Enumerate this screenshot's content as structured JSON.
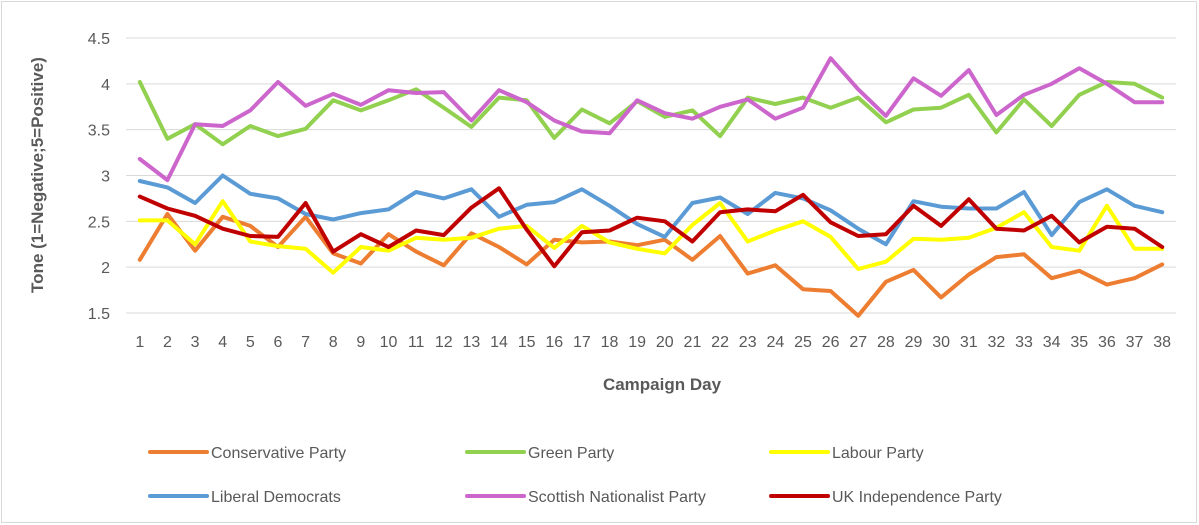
{
  "chart_data": {
    "type": "line",
    "title": "",
    "xlabel": "Campaign Day",
    "ylabel": "Tone (1=Negative;5=Positive)",
    "ylim": [
      1.5,
      4.5
    ],
    "yticks": [
      "1.5",
      "2",
      "2.5",
      "3",
      "3.5",
      "4",
      "4.5"
    ],
    "categories": [
      "1",
      "2",
      "3",
      "4",
      "5",
      "6",
      "7",
      "8",
      "9",
      "10",
      "11",
      "12",
      "13",
      "14",
      "15",
      "16",
      "17",
      "18",
      "19",
      "20",
      "21",
      "22",
      "23",
      "24",
      "25",
      "26",
      "27",
      "28",
      "29",
      "30",
      "31",
      "32",
      "33",
      "34",
      "35",
      "36",
      "37",
      "38"
    ],
    "grid": "horizontal",
    "legend_position": "bottom",
    "series": [
      {
        "name": "Conservative Party",
        "color": "#ED7D31",
        "values": [
          2.08,
          2.58,
          2.18,
          2.55,
          2.45,
          2.22,
          2.55,
          2.15,
          2.04,
          2.36,
          2.17,
          2.02,
          2.37,
          2.22,
          2.03,
          2.3,
          2.27,
          2.28,
          2.24,
          2.3,
          2.08,
          2.34,
          1.93,
          2.02,
          1.76,
          1.74,
          1.47,
          1.84,
          1.97,
          1.67,
          1.92,
          2.11,
          2.14,
          1.88,
          1.96,
          1.81,
          1.88,
          2.03
        ]
      },
      {
        "name": "Green Party",
        "color": "#92D050",
        "values": [
          4.02,
          3.4,
          3.56,
          3.34,
          3.54,
          3.43,
          3.51,
          3.82,
          3.71,
          3.82,
          3.94,
          3.74,
          3.53,
          3.85,
          3.82,
          3.41,
          3.72,
          3.57,
          3.81,
          3.64,
          3.71,
          3.43,
          3.85,
          3.78,
          3.85,
          3.74,
          3.85,
          3.58,
          3.72,
          3.74,
          3.88,
          3.47,
          3.83,
          3.54,
          3.88,
          4.02,
          4.0,
          3.85
        ]
      },
      {
        "name": "Labour Party",
        "color": "#FFFF00",
        "values": [
          2.51,
          2.51,
          2.25,
          2.72,
          2.28,
          2.23,
          2.2,
          1.94,
          2.22,
          2.18,
          2.32,
          2.3,
          2.32,
          2.42,
          2.45,
          2.21,
          2.45,
          2.27,
          2.2,
          2.15,
          2.46,
          2.7,
          2.28,
          2.4,
          2.5,
          2.33,
          1.98,
          2.06,
          2.31,
          2.3,
          2.32,
          2.43,
          2.6,
          2.22,
          2.18,
          2.67,
          2.2,
          2.2
        ]
      },
      {
        "name": "Liberal Democrats",
        "color": "#5B9BD5",
        "values": [
          2.94,
          2.87,
          2.7,
          3.0,
          2.8,
          2.75,
          2.58,
          2.52,
          2.59,
          2.63,
          2.82,
          2.75,
          2.85,
          2.55,
          2.68,
          2.71,
          2.85,
          2.67,
          2.47,
          2.33,
          2.7,
          2.76,
          2.58,
          2.81,
          2.75,
          2.62,
          2.42,
          2.25,
          2.72,
          2.66,
          2.64,
          2.64,
          2.82,
          2.35,
          2.71,
          2.85,
          2.67,
          2.6
        ]
      },
      {
        "name": "Scottish Nationalist Party",
        "color": "#CC66CC",
        "values": [
          3.18,
          2.95,
          3.56,
          3.54,
          3.71,
          4.02,
          3.76,
          3.89,
          3.77,
          3.93,
          3.9,
          3.91,
          3.6,
          3.93,
          3.8,
          3.6,
          3.48,
          3.46,
          3.82,
          3.68,
          3.62,
          3.75,
          3.83,
          3.62,
          3.74,
          4.28,
          3.94,
          3.65,
          4.06,
          3.87,
          4.15,
          3.66,
          3.88,
          4.0,
          4.17,
          4.0,
          3.8,
          3.8
        ]
      },
      {
        "name": "UK Independence Party",
        "color": "#C00000",
        "values": [
          2.77,
          2.64,
          2.56,
          2.42,
          2.34,
          2.33,
          2.7,
          2.17,
          2.36,
          2.22,
          2.4,
          2.35,
          2.65,
          2.86,
          2.41,
          2.01,
          2.38,
          2.4,
          2.54,
          2.5,
          2.28,
          2.6,
          2.63,
          2.61,
          2.79,
          2.49,
          2.34,
          2.36,
          2.67,
          2.45,
          2.74,
          2.42,
          2.4,
          2.56,
          2.27,
          2.44,
          2.42,
          2.22
        ]
      }
    ]
  }
}
